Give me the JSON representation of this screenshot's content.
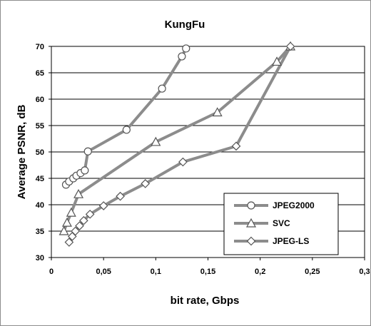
{
  "chart_data": {
    "type": "line",
    "title": "KungFu",
    "xlabel": "bit rate, Gbps",
    "ylabel": "Average PSNR, dB",
    "xlim": [
      0,
      0.3
    ],
    "ylim": [
      30,
      70
    ],
    "x_ticks": [
      0,
      0.05,
      0.1,
      0.15,
      0.2,
      0.25,
      0.3
    ],
    "x_tick_labels": [
      "0",
      "0,05",
      "0,1",
      "0,15",
      "0,2",
      "0,25",
      "0,3"
    ],
    "y_ticks": [
      30,
      35,
      40,
      45,
      50,
      55,
      60,
      65,
      70
    ],
    "y_tick_labels": [
      "30",
      "35",
      "40",
      "45",
      "50",
      "55",
      "60",
      "65",
      "70"
    ],
    "grid": "horizontal",
    "legend_position": "bottom-right",
    "line_color": "#8c8c8c",
    "series": [
      {
        "name": "JPEG2000",
        "marker": "circle",
        "points": [
          [
            0.014,
            43.8
          ],
          [
            0.017,
            44.4
          ],
          [
            0.021,
            45.0
          ],
          [
            0.024,
            45.5
          ],
          [
            0.028,
            46.0
          ],
          [
            0.032,
            46.5
          ],
          [
            0.035,
            50.1
          ],
          [
            0.072,
            54.2
          ],
          [
            0.106,
            62.0
          ],
          [
            0.125,
            68.1
          ],
          [
            0.129,
            69.6
          ]
        ]
      },
      {
        "name": "SVC",
        "marker": "triangle",
        "points": [
          [
            0.012,
            35.0
          ],
          [
            0.015,
            36.6
          ],
          [
            0.019,
            38.5
          ],
          [
            0.026,
            42.0
          ],
          [
            0.1,
            51.9
          ],
          [
            0.159,
            57.5
          ],
          [
            0.216,
            67.1
          ],
          [
            0.229,
            70.0
          ]
        ]
      },
      {
        "name": "JPEG-LS",
        "marker": "diamond",
        "points": [
          [
            0.017,
            32.9
          ],
          [
            0.02,
            34.0
          ],
          [
            0.023,
            35.0
          ],
          [
            0.027,
            36.0
          ],
          [
            0.031,
            37.0
          ],
          [
            0.037,
            38.2
          ],
          [
            0.05,
            39.8
          ],
          [
            0.066,
            41.6
          ],
          [
            0.09,
            44.0
          ],
          [
            0.126,
            48.1
          ],
          [
            0.177,
            51.1
          ],
          [
            0.229,
            70.0
          ]
        ]
      }
    ]
  }
}
